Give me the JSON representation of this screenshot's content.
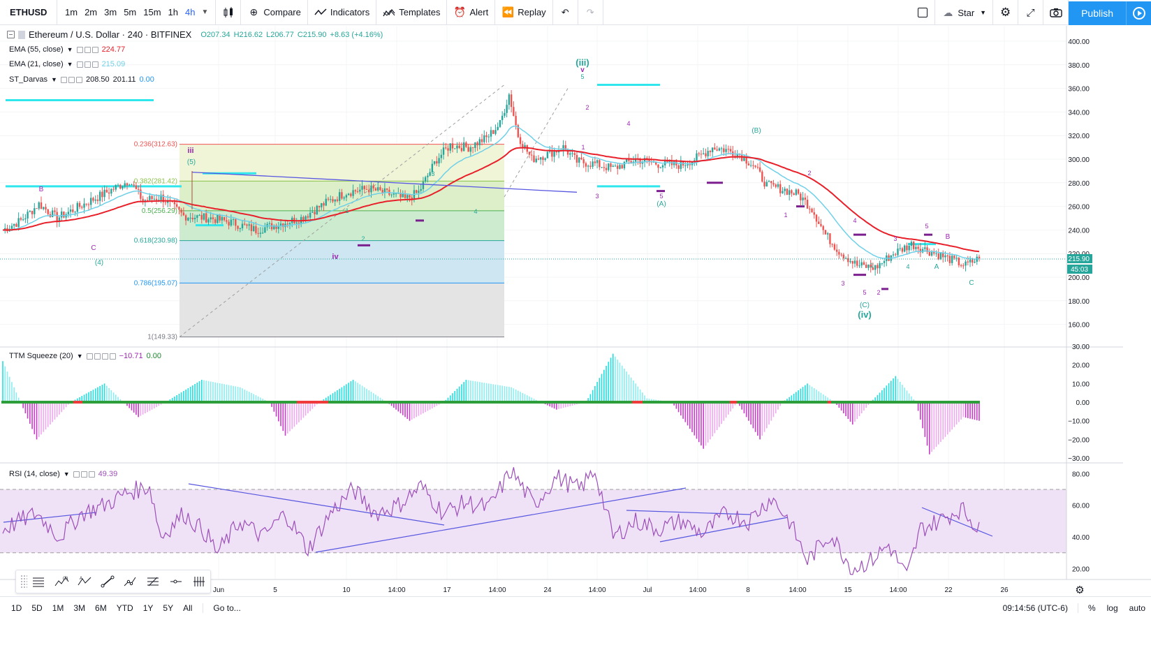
{
  "toolbar": {
    "symbol": "ETHUSD",
    "intervals": [
      "1m",
      "2m",
      "3m",
      "5m",
      "15m",
      "1h",
      "4h"
    ],
    "active_interval": "4h",
    "compare_label": "Compare",
    "indicators_label": "Indicators",
    "templates_label": "Templates",
    "alert_label": "Alert",
    "replay_label": "Replay",
    "layout_label": "Star",
    "publish_label": "Publish"
  },
  "legend": {
    "title": "Ethereum / U.S. Dollar · 240 · BITFINEX",
    "open": "O207.34",
    "high": "H216.62",
    "low": "L206.77",
    "close": "C215.90",
    "change": "+8.63 (+4.16%)",
    "ema55_label": "EMA (55, close)",
    "ema55_value": "224.77",
    "ema21_label": "EMA (21, close)",
    "ema21_value": "215.09",
    "darvas_label": "ST_Darvas",
    "darvas_v1": "208.50",
    "darvas_v2": "201.11",
    "darvas_v3": "0.00",
    "ttm_label": "TTM Squeeze (20)",
    "ttm_v1": "−10.71",
    "ttm_v2": "0.00",
    "rsi_label": "RSI (14, close)",
    "rsi_value": "49.39"
  },
  "price_axis": {
    "ticks": [
      "400.00",
      "380.00",
      "360.00",
      "340.00",
      "320.00",
      "300.00",
      "280.00",
      "260.00",
      "240.00",
      "220.00",
      "200.00",
      "180.00",
      "160.00"
    ],
    "last_price": "215.90",
    "countdown": "45:03"
  },
  "ttm_axis": {
    "ticks": [
      "30.00",
      "20.00",
      "10.00",
      "0.00",
      "−10.00",
      "−20.00",
      "−30.00"
    ]
  },
  "rsi_axis": {
    "ticks": [
      "80.00",
      "60.00",
      "40.00",
      "20.00"
    ]
  },
  "time_axis": {
    "labels": [
      "Jun",
      "5",
      "10",
      "14:00",
      "17",
      "14:00",
      "24",
      "14:00",
      "Jul",
      "14:00",
      "8",
      "14:00",
      "15",
      "14:00",
      "22",
      "26"
    ]
  },
  "fib_levels": [
    "0.236(312.63)",
    "0.382(281.42)",
    "0.5(256.29)",
    "0.618(230.98)",
    "0.786(195.07)",
    "1(149.33)"
  ],
  "wave_labels": [
    "(iii)",
    "iii",
    "(5)",
    "iv",
    "(iv)",
    "(C)",
    "(A)",
    "(B)",
    "(4)",
    "B",
    "C",
    "A",
    "B",
    "C",
    "1",
    "2",
    "3",
    "4",
    "5",
    "v"
  ],
  "bottom": {
    "ranges": [
      "1D",
      "5D",
      "1M",
      "3M",
      "6M",
      "YTD",
      "1Y",
      "5Y",
      "All"
    ],
    "goto": "Go to...",
    "time": "09:14:56 (UTC-6)",
    "percent": "%",
    "log": "log",
    "auto": "auto"
  },
  "chart_data": [
    {
      "type": "candlestick",
      "title": "Ethereum / U.S. Dollar · 240 · BITFINEX",
      "ylim": [
        145,
        410
      ],
      "y_ticks": [
        160,
        180,
        200,
        220,
        240,
        260,
        280,
        300,
        320,
        340,
        360,
        380,
        400
      ],
      "x_labels": [
        "Jun",
        "5",
        "10",
        "14:00",
        "17",
        "14:00",
        "24",
        "14:00",
        "Jul",
        "14:00",
        "8",
        "14:00",
        "15",
        "14:00",
        "22",
        "26"
      ],
      "last_close": 215.9,
      "key_points": [
        [
          0,
          240
        ],
        [
          8,
          248
        ],
        [
          16,
          262
        ],
        [
          24,
          250
        ],
        [
          32,
          258
        ],
        [
          40,
          266
        ],
        [
          50,
          276
        ],
        [
          56,
          282
        ],
        [
          62,
          265
        ],
        [
          70,
          268
        ],
        [
          80,
          252
        ],
        [
          92,
          250
        ],
        [
          102,
          246
        ],
        [
          112,
          240
        ],
        [
          122,
          245
        ],
        [
          132,
          250
        ],
        [
          142,
          262
        ],
        [
          152,
          272
        ],
        [
          162,
          275
        ],
        [
          172,
          270
        ],
        [
          178,
          266
        ],
        [
          184,
          272
        ],
        [
          188,
          286
        ],
        [
          192,
          300
        ],
        [
          198,
          312
        ],
        [
          206,
          310
        ],
        [
          214,
          318
        ],
        [
          220,
          330
        ],
        [
          224,
          355
        ],
        [
          228,
          320
        ],
        [
          234,
          300
        ],
        [
          242,
          305
        ],
        [
          248,
          310
        ],
        [
          254,
          298
        ],
        [
          262,
          296
        ],
        [
          270,
          292
        ],
        [
          280,
          300
        ],
        [
          290,
          296
        ],
        [
          300,
          295
        ],
        [
          308,
          302
        ],
        [
          314,
          310
        ],
        [
          320,
          308
        ],
        [
          326,
          304
        ],
        [
          332,
          295
        ],
        [
          338,
          278
        ],
        [
          346,
          274
        ],
        [
          352,
          270
        ],
        [
          358,
          258
        ],
        [
          364,
          236
        ],
        [
          370,
          222
        ],
        [
          378,
          210
        ],
        [
          386,
          208
        ],
        [
          394,
          220
        ],
        [
          402,
          228
        ],
        [
          410,
          222
        ],
        [
          418,
          216
        ],
        [
          426,
          210
        ],
        [
          432,
          216
        ]
      ],
      "series": [
        {
          "name": "EMA (55, close)",
          "value": 224.77
        },
        {
          "name": "EMA (21, close)",
          "value": 215.09
        }
      ]
    },
    {
      "type": "bar",
      "title": "TTM Squeeze (20)",
      "ylim": [
        -32,
        32
      ],
      "y_ticks": [
        -30,
        -20,
        -10,
        0,
        10,
        20,
        30
      ],
      "last_value": -10.71
    },
    {
      "type": "line",
      "title": "RSI (14, close)",
      "ylim": [
        10,
        86
      ],
      "y_ticks": [
        20,
        40,
        60,
        80
      ],
      "bands": [
        30,
        70
      ],
      "last_value": 49.39
    }
  ],
  "colors": {
    "up": "#26a69a",
    "down": "#ef5350",
    "ema55": "#e8202a",
    "ema21": "#6fd0e8",
    "ttm_pos": "#5ee0e6",
    "ttm_neg": "#e070e0",
    "rsi": "#9c4fb8",
    "rsi_band": "#efe1f6",
    "trendline": "#5757e0",
    "darvas_cyan": "#2ee6ec",
    "darvas_purple": "#7b1f8f"
  }
}
